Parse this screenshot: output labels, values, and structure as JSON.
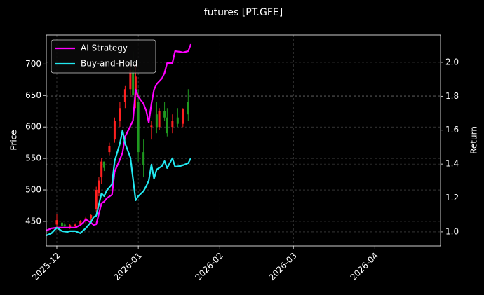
{
  "chart_data": {
    "type": "candlestick",
    "title": "futures [PT.GFE]",
    "y_label": "Price",
    "y2_label": "Return",
    "xlim": [
      -4,
      146
    ],
    "xticks": [
      {
        "value": 0,
        "label": "2025-12"
      },
      {
        "value": 31,
        "label": "2026-01"
      },
      {
        "value": 62,
        "label": "2026-02"
      },
      {
        "value": 90,
        "label": "2026-03"
      },
      {
        "value": 121,
        "label": "2026-04"
      }
    ],
    "ylim": [
      411,
      746
    ],
    "yticks": [
      450,
      500,
      550,
      600,
      650,
      700
    ],
    "y2lim": [
      0.917,
      2.161
    ],
    "y2ticks": [
      {
        "value": 1,
        "label": "1.0"
      },
      1.2,
      1.4,
      1.6,
      1.8,
      {
        "value": 2,
        "label": "2.0"
      }
    ],
    "grid": true,
    "legend": "upper left",
    "up_color": "#ff2020",
    "down_color": "#1f9a1f",
    "candles": {
      "x": [
        0,
        2,
        3,
        5,
        7,
        9,
        11,
        13,
        15,
        16,
        17,
        18,
        20,
        22,
        24,
        26,
        28,
        29,
        30,
        31,
        33,
        36,
        38,
        39,
        41,
        42,
        44,
        46,
        48,
        50
      ],
      "open": [
        445,
        448,
        445,
        441,
        443,
        446,
        450,
        455,
        470,
        495,
        520,
        545,
        560,
        580,
        610,
        640,
        660,
        690,
        650,
        640,
        560,
        600,
        620,
        600,
        625,
        615,
        600,
        615,
        605,
        640
      ],
      "high": [
        462,
        450,
        448,
        446,
        447,
        452,
        458,
        462,
        505,
        520,
        550,
        545,
        575,
        615,
        640,
        665,
        700,
        720,
        700,
        660,
        580,
        610,
        640,
        630,
        640,
        630,
        620,
        630,
        630,
        660
      ],
      "low": [
        440,
        440,
        440,
        438,
        440,
        443,
        447,
        450,
        465,
        490,
        510,
        530,
        555,
        575,
        600,
        630,
        650,
        640,
        630,
        545,
        520,
        580,
        590,
        595,
        610,
        585,
        590,
        600,
        600,
        610
      ],
      "close": [
        452,
        443,
        442,
        444,
        445,
        450,
        455,
        460,
        500,
        515,
        545,
        535,
        570,
        610,
        630,
        660,
        690,
        650,
        680,
        560,
        540,
        602,
        600,
        625,
        615,
        590,
        610,
        605,
        628,
        620
      ]
    },
    "x": [
      -4,
      -2,
      0,
      2,
      4,
      5,
      7,
      9,
      10,
      11,
      13,
      14,
      15,
      17,
      18,
      19,
      21,
      22,
      24,
      25,
      26,
      28,
      29,
      30,
      31,
      33,
      34,
      35,
      36,
      37,
      38,
      40,
      41,
      42,
      44,
      45,
      47,
      48,
      50,
      51
    ],
    "series": [
      {
        "name": "AI Strategy",
        "color": "#ff00ff",
        "axis": "y2",
        "values": [
          1.008,
          1.021,
          1.025,
          1.025,
          1.025,
          1.025,
          1.025,
          1.041,
          1.054,
          1.074,
          1.054,
          1.041,
          1.045,
          1.169,
          1.178,
          1.198,
          1.219,
          1.355,
          1.426,
          1.467,
          1.562,
          1.624,
          1.657,
          1.839,
          1.798,
          1.756,
          1.715,
          1.645,
          1.756,
          1.839,
          1.872,
          1.905,
          1.938,
          1.996,
          1.996,
          2.066,
          2.062,
          2.058,
          2.066,
          2.107
        ]
      },
      {
        "name": "Buy-and-Hold",
        "color": "#22e8f0",
        "axis": "y2",
        "values": [
          0.979,
          0.992,
          1.025,
          1.004,
          1.0,
          1.004,
          1.004,
          0.992,
          1.008,
          1.021,
          1.058,
          1.087,
          1.095,
          1.227,
          1.211,
          1.244,
          1.281,
          1.417,
          1.521,
          1.599,
          1.521,
          1.438,
          1.314,
          1.186,
          1.211,
          1.24,
          1.269,
          1.302,
          1.397,
          1.314,
          1.368,
          1.388,
          1.417,
          1.376,
          1.434,
          1.384,
          1.388,
          1.393,
          1.405,
          1.434
        ]
      }
    ]
  }
}
